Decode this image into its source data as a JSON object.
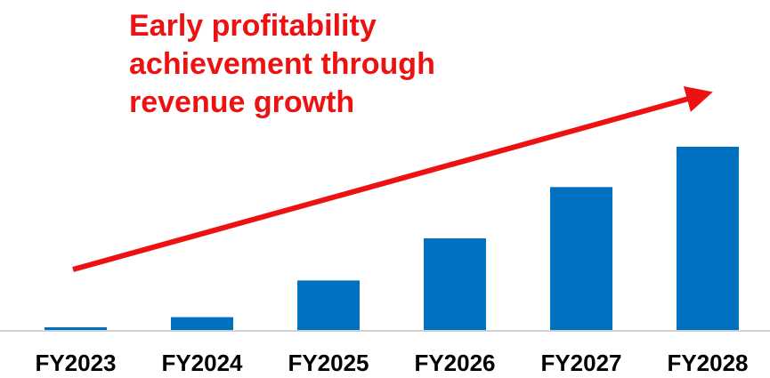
{
  "chart_data": {
    "type": "bar",
    "title": "Early profitability achievement through revenue growth",
    "categories": [
      "FY2023",
      "FY2024",
      "FY2025",
      "FY2026",
      "FY2027",
      "FY2028"
    ],
    "values": [
      1.5,
      7,
      27,
      50,
      78,
      100
    ],
    "color": "#0070c0",
    "ylim": [
      0,
      100
    ]
  }
}
